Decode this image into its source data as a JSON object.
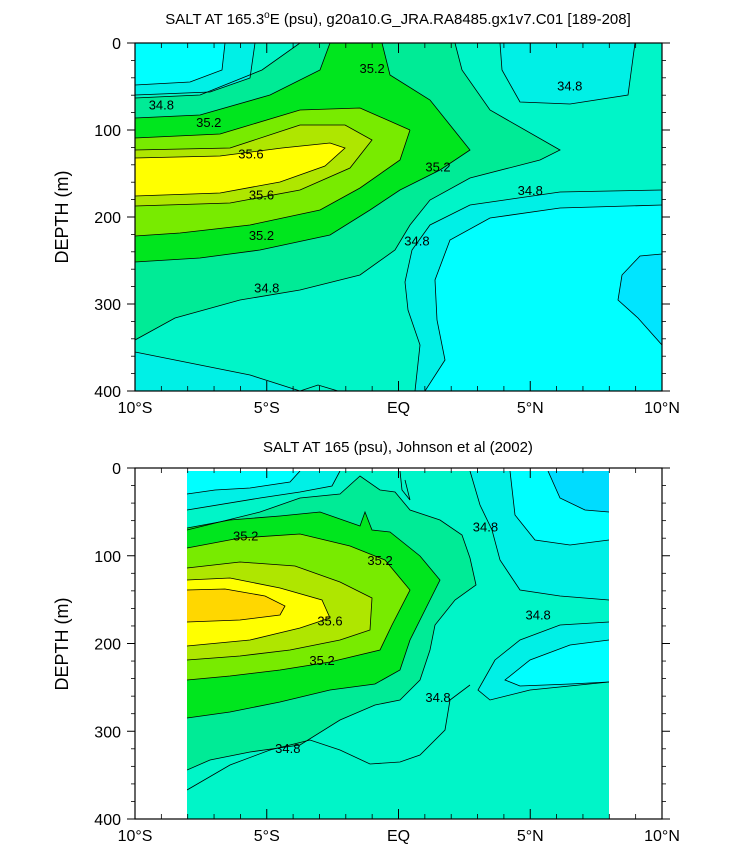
{
  "colors": {
    "s34_4": "#00ffff",
    "s34_6": "#00f0e6",
    "s34_8": "#00f5c8",
    "s35_0": "#00eb96",
    "s35_2": "#00e61e",
    "s35_4": "#78eb00",
    "s35_6": "#afe600",
    "s35_8": "#ffff00",
    "s36_0": "#ffd700",
    "s34_2": "#00dcff"
  },
  "chart_data": [
    {
      "type": "contour",
      "title": "SALT AT 165.3°E (psu), g20a10.G_JRA.RA8485.gx1v7.C01 [189-208]",
      "title_parts": {
        "pre": "SALT AT 165.3",
        "sup": "o",
        "post": "E (psu), g20a10.G_JRA.RA8485.gx1v7.C01 [189-208]"
      },
      "ylabel": "DEPTH (m)",
      "xlabel": "",
      "xlim": [
        -10,
        10
      ],
      "ylim": [
        0,
        400
      ],
      "y_inverted": true,
      "x_ticks": [
        "10°S",
        "5°S",
        "EQ",
        "5°N",
        "10°N"
      ],
      "y_ticks": [
        "0",
        "100",
        "200",
        "300",
        "400"
      ],
      "contour_interval": 0.2,
      "contour_labels": [
        {
          "text": "35.2",
          "x": -1.0,
          "y": 30
        },
        {
          "text": "34.8",
          "x": 6.5,
          "y": 50
        },
        {
          "text": "34.8",
          "x": -9.0,
          "y": 72
        },
        {
          "text": "35.2",
          "x": -7.2,
          "y": 92
        },
        {
          "text": "35.6",
          "x": -5.6,
          "y": 128
        },
        {
          "text": "35.2",
          "x": 1.5,
          "y": 143
        },
        {
          "text": "35.6",
          "x": -5.2,
          "y": 175
        },
        {
          "text": "34.8",
          "x": 5.0,
          "y": 170
        },
        {
          "text": "35.2",
          "x": -5.2,
          "y": 222
        },
        {
          "text": "34.8",
          "x": 0.7,
          "y": 228
        },
        {
          "text": "34.8",
          "x": -5.0,
          "y": 282
        }
      ]
    },
    {
      "type": "contour",
      "title": "SALT AT 165 (psu), Johnson et al (2002)",
      "ylabel": "DEPTH (m)",
      "xlabel": "",
      "xlim": [
        -10,
        10
      ],
      "ylim": [
        0,
        400
      ],
      "y_inverted": true,
      "data_extent_x": [
        -8,
        8
      ],
      "x_ticks": [
        "10°S",
        "5°S",
        "EQ",
        "5°N",
        "10°N"
      ],
      "y_ticks": [
        "0",
        "100",
        "200",
        "300",
        "400"
      ],
      "contour_interval": 0.2,
      "contour_labels": [
        {
          "text": "35.2",
          "x": -5.8,
          "y": 78
        },
        {
          "text": "35.2",
          "x": -0.7,
          "y": 106
        },
        {
          "text": "34.8",
          "x": 3.3,
          "y": 68
        },
        {
          "text": "35.6",
          "x": -2.6,
          "y": 175
        },
        {
          "text": "34.8",
          "x": 5.3,
          "y": 168
        },
        {
          "text": "35.2",
          "x": -2.9,
          "y": 220
        },
        {
          "text": "34.8",
          "x": 1.5,
          "y": 262
        },
        {
          "text": "34.8",
          "x": -4.2,
          "y": 320
        }
      ]
    }
  ]
}
